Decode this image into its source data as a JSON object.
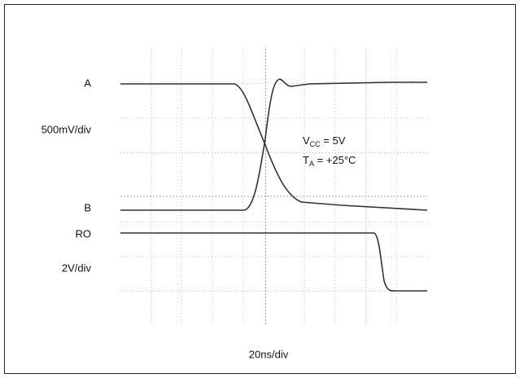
{
  "labels": {
    "trace_a": "A",
    "scale_top": "500mV/div",
    "trace_b": "B",
    "trace_ro": "RO",
    "scale_bottom": "2V/div",
    "time_scale": "20ns/div"
  },
  "conditions": [
    {
      "symbol": "V",
      "subscript": "CC",
      "value": " = 5V"
    },
    {
      "symbol": "T",
      "subscript": "A",
      "value": " = +25°C"
    }
  ]
}
